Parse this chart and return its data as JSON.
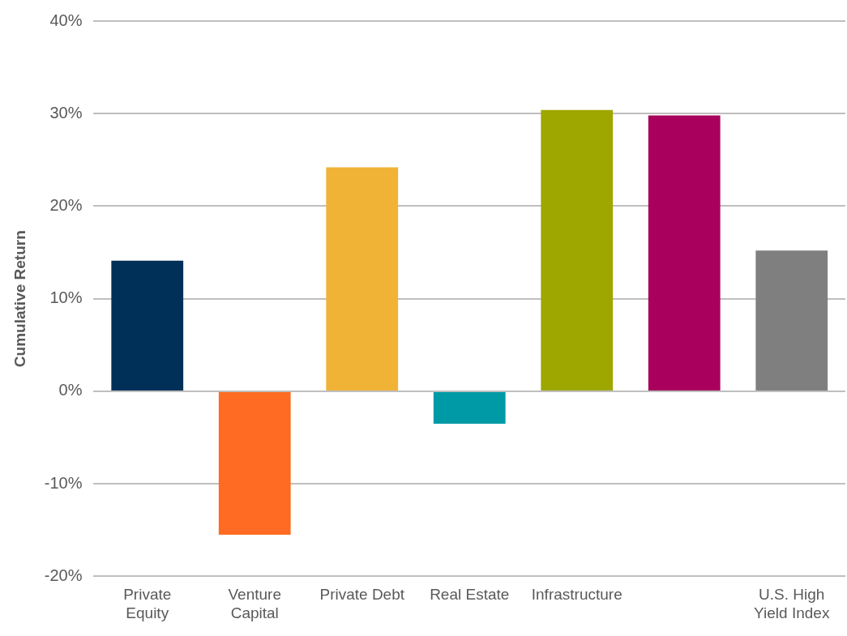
{
  "chart_data": {
    "type": "bar",
    "ylabel": "Cumulative Return",
    "categories": [
      "Private Equity",
      "Venture Capital",
      "Private Debt",
      "Real Estate",
      "Infrastructure",
      null,
      "U.S. High Yield Index"
    ],
    "values": [
      14.1,
      -15.5,
      24.2,
      -3.5,
      30.4,
      29.8,
      15.2
    ],
    "colors": [
      "#003057",
      "#ff6b22",
      "#f0b336",
      "#009aa6",
      "#9ea700",
      "#a8005c",
      "#7f7f7f"
    ],
    "ylim": [
      -20,
      40
    ],
    "yticks": [
      {
        "value": -20,
        "label": "-20%"
      },
      {
        "value": -10,
        "label": "-10%"
      },
      {
        "value": 0,
        "label": "0%"
      },
      {
        "value": 10,
        "label": "10%"
      },
      {
        "value": 20,
        "label": "20%"
      },
      {
        "value": 30,
        "label": "30%"
      },
      {
        "value": 40,
        "label": "40%"
      }
    ],
    "grid": "y"
  }
}
